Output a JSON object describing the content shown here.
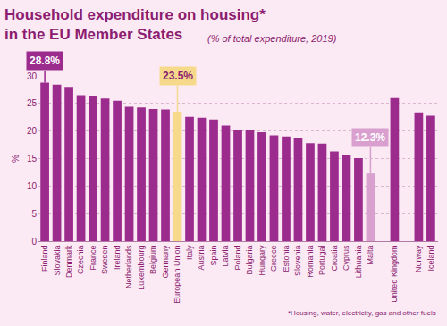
{
  "chart_data": {
    "type": "bar",
    "title": [
      "Household expenditure on housing*",
      "in the EU Member States"
    ],
    "subtitle": "(% of total expenditure, 2019)",
    "y_label": "%",
    "note": "*Housing, water, electricity, gas and other fuels",
    "categories": [
      "Finland",
      "Slovakia",
      "Denmark",
      "Czechia",
      "France",
      "Sweden",
      "Ireland",
      "Netherlands",
      "Luxembourg",
      "Belgium",
      "Germany",
      "European Union",
      "Italy",
      "Austria",
      "Spain",
      "Latvia",
      "Poland",
      "Bulgaria",
      "Hungary",
      "Greece",
      "Estonia",
      "Slovenia",
      "Romania",
      "Portugal",
      "Croatia",
      "Cyprus",
      "Lithuania",
      "Malta",
      null,
      "United Kingdom",
      null,
      "Norway",
      "Iceland"
    ],
    "values": [
      28.8,
      28.4,
      28.0,
      26.5,
      26.3,
      25.9,
      25.5,
      24.4,
      24.3,
      24.0,
      23.9,
      23.5,
      22.6,
      22.4,
      22.1,
      21.0,
      20.2,
      20.1,
      19.8,
      19.2,
      19.0,
      18.7,
      17.8,
      17.7,
      16.3,
      15.6,
      15.1,
      12.3,
      null,
      26.0,
      null,
      23.4,
      22.8
    ],
    "colors": [
      "#9c2b8e",
      "#9c2b8e",
      "#9c2b8e",
      "#9c2b8e",
      "#9c2b8e",
      "#9c2b8e",
      "#9c2b8e",
      "#9c2b8e",
      "#9c2b8e",
      "#9c2b8e",
      "#9c2b8e",
      "#f7d98b",
      "#9c2b8e",
      "#9c2b8e",
      "#9c2b8e",
      "#9c2b8e",
      "#9c2b8e",
      "#9c2b8e",
      "#9c2b8e",
      "#9c2b8e",
      "#9c2b8e",
      "#9c2b8e",
      "#9c2b8e",
      "#9c2b8e",
      "#9c2b8e",
      "#9c2b8e",
      "#9c2b8e",
      "#d9a0cf",
      null,
      "#9c2b8e",
      null,
      "#9c2b8e",
      "#9c2b8e"
    ],
    "annotations": [
      {
        "category": "Finland",
        "text": "28.8%"
      },
      {
        "category": "European Union",
        "text": "23.5%"
      },
      {
        "category": "Malta",
        "text": "12.3%"
      }
    ],
    "ylim": [
      0,
      30
    ],
    "yticks": [
      0,
      5,
      10,
      15,
      20,
      25,
      30
    ],
    "grid": true
  }
}
